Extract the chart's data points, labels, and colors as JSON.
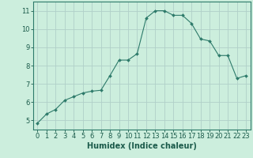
{
  "x": [
    0,
    1,
    2,
    3,
    4,
    5,
    6,
    7,
    8,
    9,
    10,
    11,
    12,
    13,
    14,
    15,
    16,
    17,
    18,
    19,
    20,
    21,
    22,
    23
  ],
  "y": [
    4.85,
    5.35,
    5.6,
    6.1,
    6.3,
    6.5,
    6.6,
    6.65,
    7.45,
    8.3,
    8.3,
    8.65,
    10.6,
    11.0,
    11.0,
    10.75,
    10.75,
    10.3,
    9.45,
    9.35,
    8.55,
    8.55,
    7.3,
    7.45
  ],
  "bg_color": "#cceedd",
  "line_color": "#2d7a6a",
  "marker_color": "#2d7a6a",
  "grid_color": "#b0d0c8",
  "xlabel": "Humidex (Indice chaleur)",
  "xlim": [
    -0.5,
    23.5
  ],
  "ylim": [
    4.5,
    11.5
  ],
  "yticks": [
    5,
    6,
    7,
    8,
    9,
    10,
    11
  ],
  "xticks": [
    0,
    1,
    2,
    3,
    4,
    5,
    6,
    7,
    8,
    9,
    10,
    11,
    12,
    13,
    14,
    15,
    16,
    17,
    18,
    19,
    20,
    21,
    22,
    23
  ],
  "tick_label_color": "#1a5a4a",
  "axis_color": "#2d7a6a",
  "xlabel_color": "#1a5a4a",
  "xlabel_fontsize": 7.0,
  "tick_fontsize": 6.0
}
